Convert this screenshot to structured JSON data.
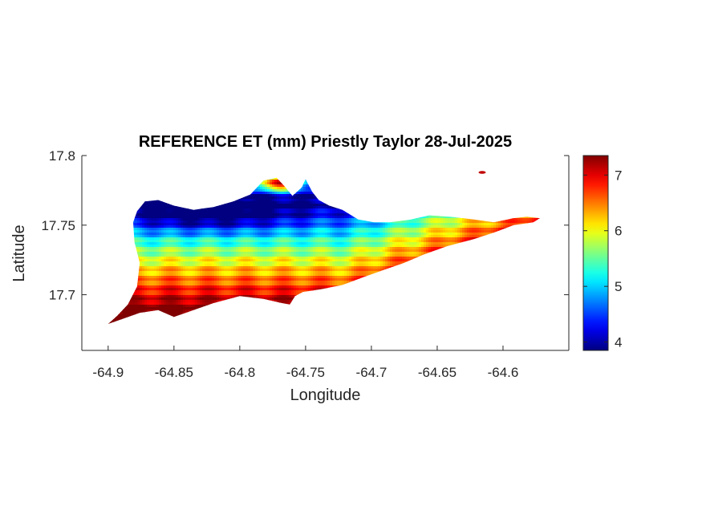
{
  "chart_data": {
    "type": "heatmap",
    "title": "REFERENCE ET (mm) Priestly Taylor 28-Jul-2025",
    "xlabel": "Longitude",
    "ylabel": "Latitude",
    "xlim": [
      -64.92,
      -64.55
    ],
    "ylim": [
      17.66,
      17.8
    ],
    "x_ticks": [
      -64.9,
      -64.85,
      -64.8,
      -64.75,
      -64.7,
      -64.65,
      -64.6
    ],
    "x_tick_labels": [
      "-64.9",
      "-64.85",
      "-64.8",
      "-64.75",
      "-64.7",
      "-64.65",
      "-64.6"
    ],
    "y_ticks": [
      17.7,
      17.75,
      17.8
    ],
    "y_tick_labels": [
      "17.7",
      "17.75",
      "17.8"
    ],
    "colorbar": {
      "colormap": "jet",
      "range": [
        3.85,
        7.35
      ],
      "ticks": [
        4,
        5,
        6,
        7
      ],
      "tick_labels": [
        "4",
        "5",
        "6",
        "7"
      ]
    },
    "grid": false,
    "legend": "none",
    "description_of_field": {
      "island_outline": [
        [
          -64.9,
          17.679
        ],
        [
          -64.893,
          17.685
        ],
        [
          -64.885,
          17.693
        ],
        [
          -64.878,
          17.706
        ],
        [
          -64.876,
          17.723
        ],
        [
          -64.88,
          17.738
        ],
        [
          -64.881,
          17.752
        ],
        [
          -64.878,
          17.76
        ],
        [
          -64.872,
          17.767
        ],
        [
          -64.862,
          17.768
        ],
        [
          -64.85,
          17.764
        ],
        [
          -64.835,
          17.761
        ],
        [
          -64.82,
          17.763
        ],
        [
          -64.805,
          17.767
        ],
        [
          -64.792,
          17.772
        ],
        [
          -64.782,
          17.782
        ],
        [
          -64.772,
          17.784
        ],
        [
          -64.766,
          17.778
        ],
        [
          -64.76,
          17.771
        ],
        [
          -64.753,
          17.777
        ],
        [
          -64.75,
          17.783
        ],
        [
          -64.745,
          17.774
        ],
        [
          -64.74,
          17.768
        ],
        [
          -64.732,
          17.764
        ],
        [
          -64.722,
          17.761
        ],
        [
          -64.71,
          17.754
        ],
        [
          -64.698,
          17.752
        ],
        [
          -64.686,
          17.752
        ],
        [
          -64.67,
          17.754
        ],
        [
          -64.656,
          17.757
        ],
        [
          -64.64,
          17.756
        ],
        [
          -64.622,
          17.754
        ],
        [
          -64.607,
          17.752
        ],
        [
          -64.592,
          17.755
        ],
        [
          -64.582,
          17.756
        ],
        [
          -64.572,
          17.755
        ],
        [
          -64.577,
          17.752
        ],
        [
          -64.592,
          17.75
        ],
        [
          -64.606,
          17.745
        ],
        [
          -64.622,
          17.74
        ],
        [
          -64.642,
          17.735
        ],
        [
          -64.66,
          17.729
        ],
        [
          -64.675,
          17.723
        ],
        [
          -64.69,
          17.718
        ],
        [
          -64.705,
          17.713
        ],
        [
          -64.722,
          17.707
        ],
        [
          -64.738,
          17.704
        ],
        [
          -64.752,
          17.702
        ],
        [
          -64.758,
          17.699
        ],
        [
          -64.762,
          17.693
        ],
        [
          -64.768,
          17.694
        ],
        [
          -64.782,
          17.697
        ],
        [
          -64.8,
          17.699
        ],
        [
          -64.82,
          17.694
        ],
        [
          -64.838,
          17.688
        ],
        [
          -64.85,
          17.684
        ],
        [
          -64.862,
          17.689
        ],
        [
          -64.876,
          17.687
        ],
        [
          -64.888,
          17.683
        ],
        [
          -64.9,
          17.679
        ]
      ]
    }
  }
}
